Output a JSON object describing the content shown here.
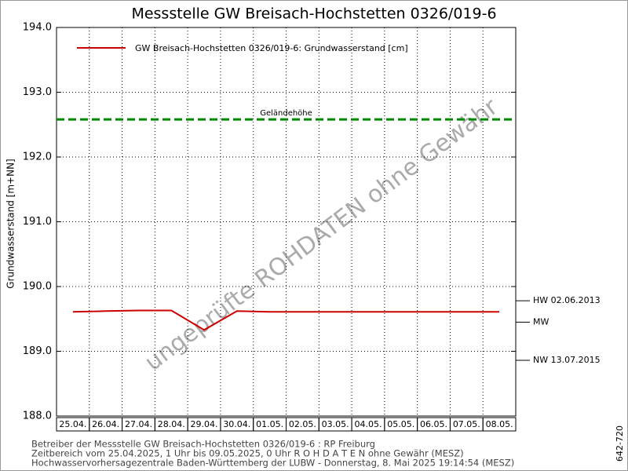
{
  "chart_data": {
    "type": "line",
    "title": "Messstelle GW Breisach-Hochstetten 0326/019-6",
    "y_label": "Grundwasserstand [m+NN]",
    "categories": [
      "25.04.",
      "26.04.",
      "27.04.",
      "28.04.",
      "29.04.",
      "30.04.",
      "01.05.",
      "02.05.",
      "03.05.",
      "04.05.",
      "05.05.",
      "06.05.",
      "07.05.",
      "08.05."
    ],
    "series": [
      {
        "name": "GW Breisach-Hochstetten 0326/019-6: Grundwasserstand  [cm]",
        "color": "#cc0000",
        "values": [
          189.61,
          189.62,
          189.63,
          189.63,
          189.33,
          189.62,
          189.61,
          189.61,
          189.61,
          189.61,
          189.61,
          189.61,
          189.61,
          189.61
        ]
      }
    ],
    "ylim": [
      188,
      194
    ],
    "yticks": [
      {
        "value": 188,
        "label": "188.0"
      },
      {
        "value": 189,
        "label": "189.0"
      },
      {
        "value": 190,
        "label": "190.0"
      },
      {
        "value": 191,
        "label": "191.0"
      },
      {
        "value": 192,
        "label": "192.0"
      },
      {
        "value": 193,
        "label": "193.0"
      },
      {
        "value": 194,
        "label": "194.0"
      }
    ],
    "grid": true,
    "reference_lines": [
      {
        "name": "Geländehöhe",
        "value": 192.58,
        "color": "#008800"
      }
    ],
    "markers": [
      {
        "label": "HW 02.06.2013",
        "value": 189.78
      },
      {
        "label": "MW",
        "value": 189.45
      },
      {
        "label": "NW 13.07.2015",
        "value": 188.86
      }
    ],
    "watermark": "ungeprüfte ROHDATEN ohne Gewähr",
    "footer": [
      "Betreiber der Messstelle GW Breisach-Hochstetten 0326/019-6 : RP Freiburg",
      "Zeitbereich vom 25.04.2025, 1 Uhr bis 09.05.2025, 0 Uhr   R O H D A T E N ohne Gewähr (MESZ)",
      "Hochwasservorhersagezentrale Baden-Württemberg der LUBW - Donnerstag, 8. Mai 2025 19:14:54 (MESZ)"
    ],
    "code": "642-720"
  }
}
